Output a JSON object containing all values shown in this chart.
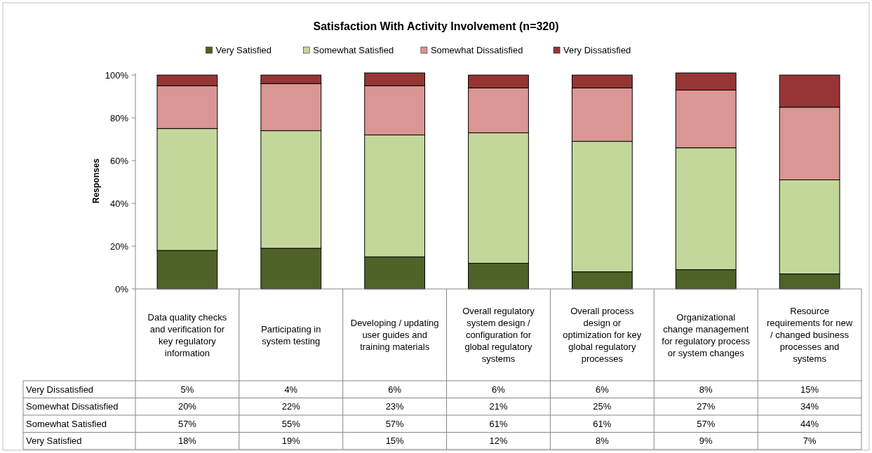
{
  "chart_data": {
    "type": "bar",
    "stacked": true,
    "title": "Satisfaction With Activity Involvement (n=320)",
    "ylabel": "Responses",
    "categories": [
      "Data quality checks and verification for key regulatory information",
      "Participating in system testing",
      "Developing / updating user guides and training materials",
      "Overall regulatory system design / configuration for global regulatory systems",
      "Overall process design or optimization for key global regulatory processes",
      "Organizational change management for regulatory process or system changes",
      "Resource requirements for new / changed business processes and systems"
    ],
    "series": [
      {
        "name": "Very Satisfied",
        "color": "#4f6228",
        "values": [
          18,
          19,
          15,
          12,
          8,
          9,
          7
        ]
      },
      {
        "name": "Somewhat Satisfied",
        "color": "#c4d79b",
        "values": [
          57,
          55,
          57,
          61,
          61,
          57,
          44
        ]
      },
      {
        "name": "Somewhat Dissatisfied",
        "color": "#da9694",
        "values": [
          20,
          22,
          23,
          21,
          25,
          27,
          34
        ]
      },
      {
        "name": "Very Dissatisfied",
        "color": "#963634",
        "values": [
          5,
          4,
          6,
          6,
          6,
          8,
          15
        ]
      }
    ],
    "ylim": [
      0,
      101
    ],
    "yticks": [
      {
        "value": 0,
        "label": "0%"
      },
      {
        "value": 20,
        "label": "20%"
      },
      {
        "value": 40,
        "label": "40%"
      },
      {
        "value": 60,
        "label": "60%"
      },
      {
        "value": 80,
        "label": "80%"
      },
      {
        "value": 100,
        "label": "100%"
      }
    ],
    "value_labels": [
      [
        "18%",
        "19%",
        "15%",
        "12%",
        "8%",
        "9%",
        "7%"
      ],
      [
        "57%",
        "55%",
        "57%",
        "61%",
        "61%",
        "57%",
        "44%"
      ],
      [
        "20%",
        "22%",
        "23%",
        "21%",
        "25%",
        "27%",
        "34%"
      ],
      [
        "5%",
        "4%",
        "6%",
        "6%",
        "6%",
        "8%",
        "15%"
      ]
    ],
    "grid": false,
    "legend": "top"
  }
}
